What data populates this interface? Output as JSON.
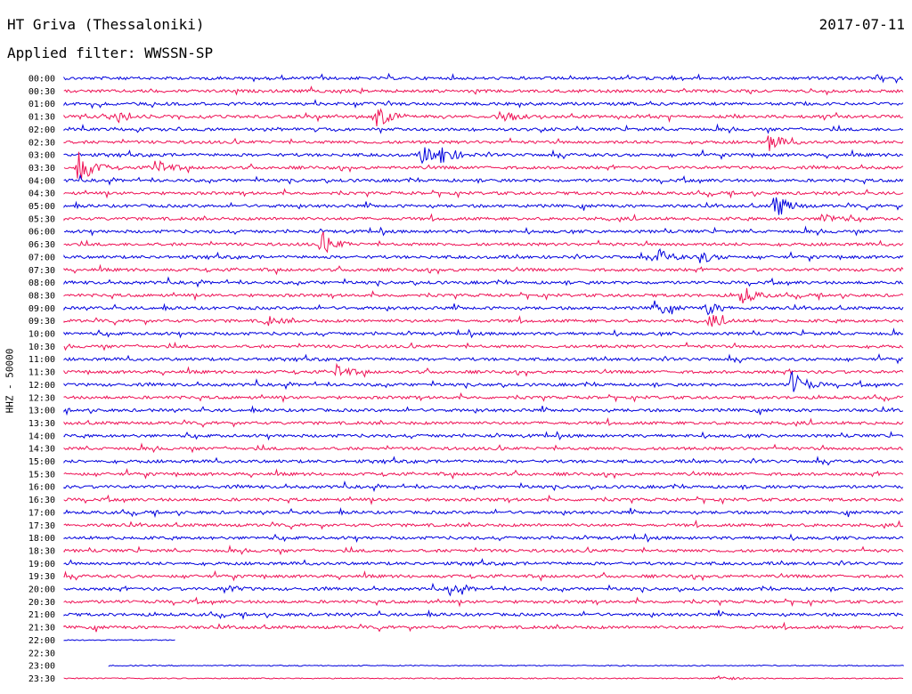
{
  "header": {
    "station": "HT Griva (Thessaloniki)",
    "date": "2017-07-11",
    "filter_label": "Applied filter: WWSSN-SP"
  },
  "chart_data": {
    "type": "line",
    "title": "HT Griva (Thessaloniki)",
    "ylabel": "HHZ - 50000",
    "legend": "none",
    "grid": false,
    "rows": [
      "00:00",
      "00:30",
      "01:00",
      "01:30",
      "02:00",
      "02:30",
      "03:00",
      "03:30",
      "04:00",
      "04:30",
      "05:00",
      "05:30",
      "06:00",
      "06:30",
      "07:00",
      "07:30",
      "08:00",
      "08:30",
      "09:00",
      "09:30",
      "10:00",
      "10:30",
      "11:00",
      "11:30",
      "12:00",
      "12:30",
      "13:00",
      "13:30",
      "14:00",
      "14:30",
      "15:00",
      "15:30",
      "16:00",
      "16:30",
      "17:00",
      "17:30",
      "18:00",
      "18:30",
      "19:00",
      "19:30",
      "20:00",
      "20:30",
      "21:00",
      "21:30",
      "22:00",
      "22:30",
      "23:00",
      "23:30"
    ],
    "colors": [
      "#0000dd",
      "#ee1155"
    ],
    "segment_minutes": 30,
    "trace_extent_minutes": {
      "22:00": [
        0,
        4
      ],
      "22:30": [
        0,
        0
      ],
      "23:00": [
        1.6,
        30
      ]
    },
    "events": [
      {
        "row": "01:30",
        "minute": 1.9,
        "amplitude": 9
      },
      {
        "row": "01:30",
        "minute": 11.1,
        "amplitude": 16
      },
      {
        "row": "01:30",
        "minute": 15.5,
        "amplitude": 10
      },
      {
        "row": "02:30",
        "minute": 25.2,
        "amplitude": 10
      },
      {
        "row": "03:00",
        "minute": 12.8,
        "amplitude": 13
      },
      {
        "row": "03:00",
        "minute": 13.5,
        "amplitude": 10
      },
      {
        "row": "03:30",
        "minute": 0.5,
        "amplitude": 22
      },
      {
        "row": "03:30",
        "minute": 3.2,
        "amplitude": 12
      },
      {
        "row": "05:00",
        "minute": 25.4,
        "amplitude": 16
      },
      {
        "row": "05:30",
        "minute": 27.1,
        "amplitude": 7
      },
      {
        "row": "06:30",
        "minute": 9.2,
        "amplitude": 14
      },
      {
        "row": "07:00",
        "minute": 21.2,
        "amplitude": 9
      },
      {
        "row": "07:00",
        "minute": 22.7,
        "amplitude": 7
      },
      {
        "row": "08:30",
        "minute": 24.2,
        "amplitude": 11
      },
      {
        "row": "09:00",
        "minute": 21.1,
        "amplitude": 9
      },
      {
        "row": "09:00",
        "minute": 22.9,
        "amplitude": 8
      },
      {
        "row": "09:30",
        "minute": 7.2,
        "amplitude": 6
      },
      {
        "row": "09:30",
        "minute": 23.1,
        "amplitude": 7
      },
      {
        "row": "11:30",
        "minute": 9.7,
        "amplitude": 9
      },
      {
        "row": "12:00",
        "minute": 26.0,
        "amplitude": 16
      },
      {
        "row": "20:00",
        "minute": 5.7,
        "amplitude": 5
      },
      {
        "row": "20:00",
        "minute": 13.8,
        "amplitude": 6
      },
      {
        "row": "23:30",
        "minute": 23.3,
        "amplitude": 4
      }
    ]
  }
}
